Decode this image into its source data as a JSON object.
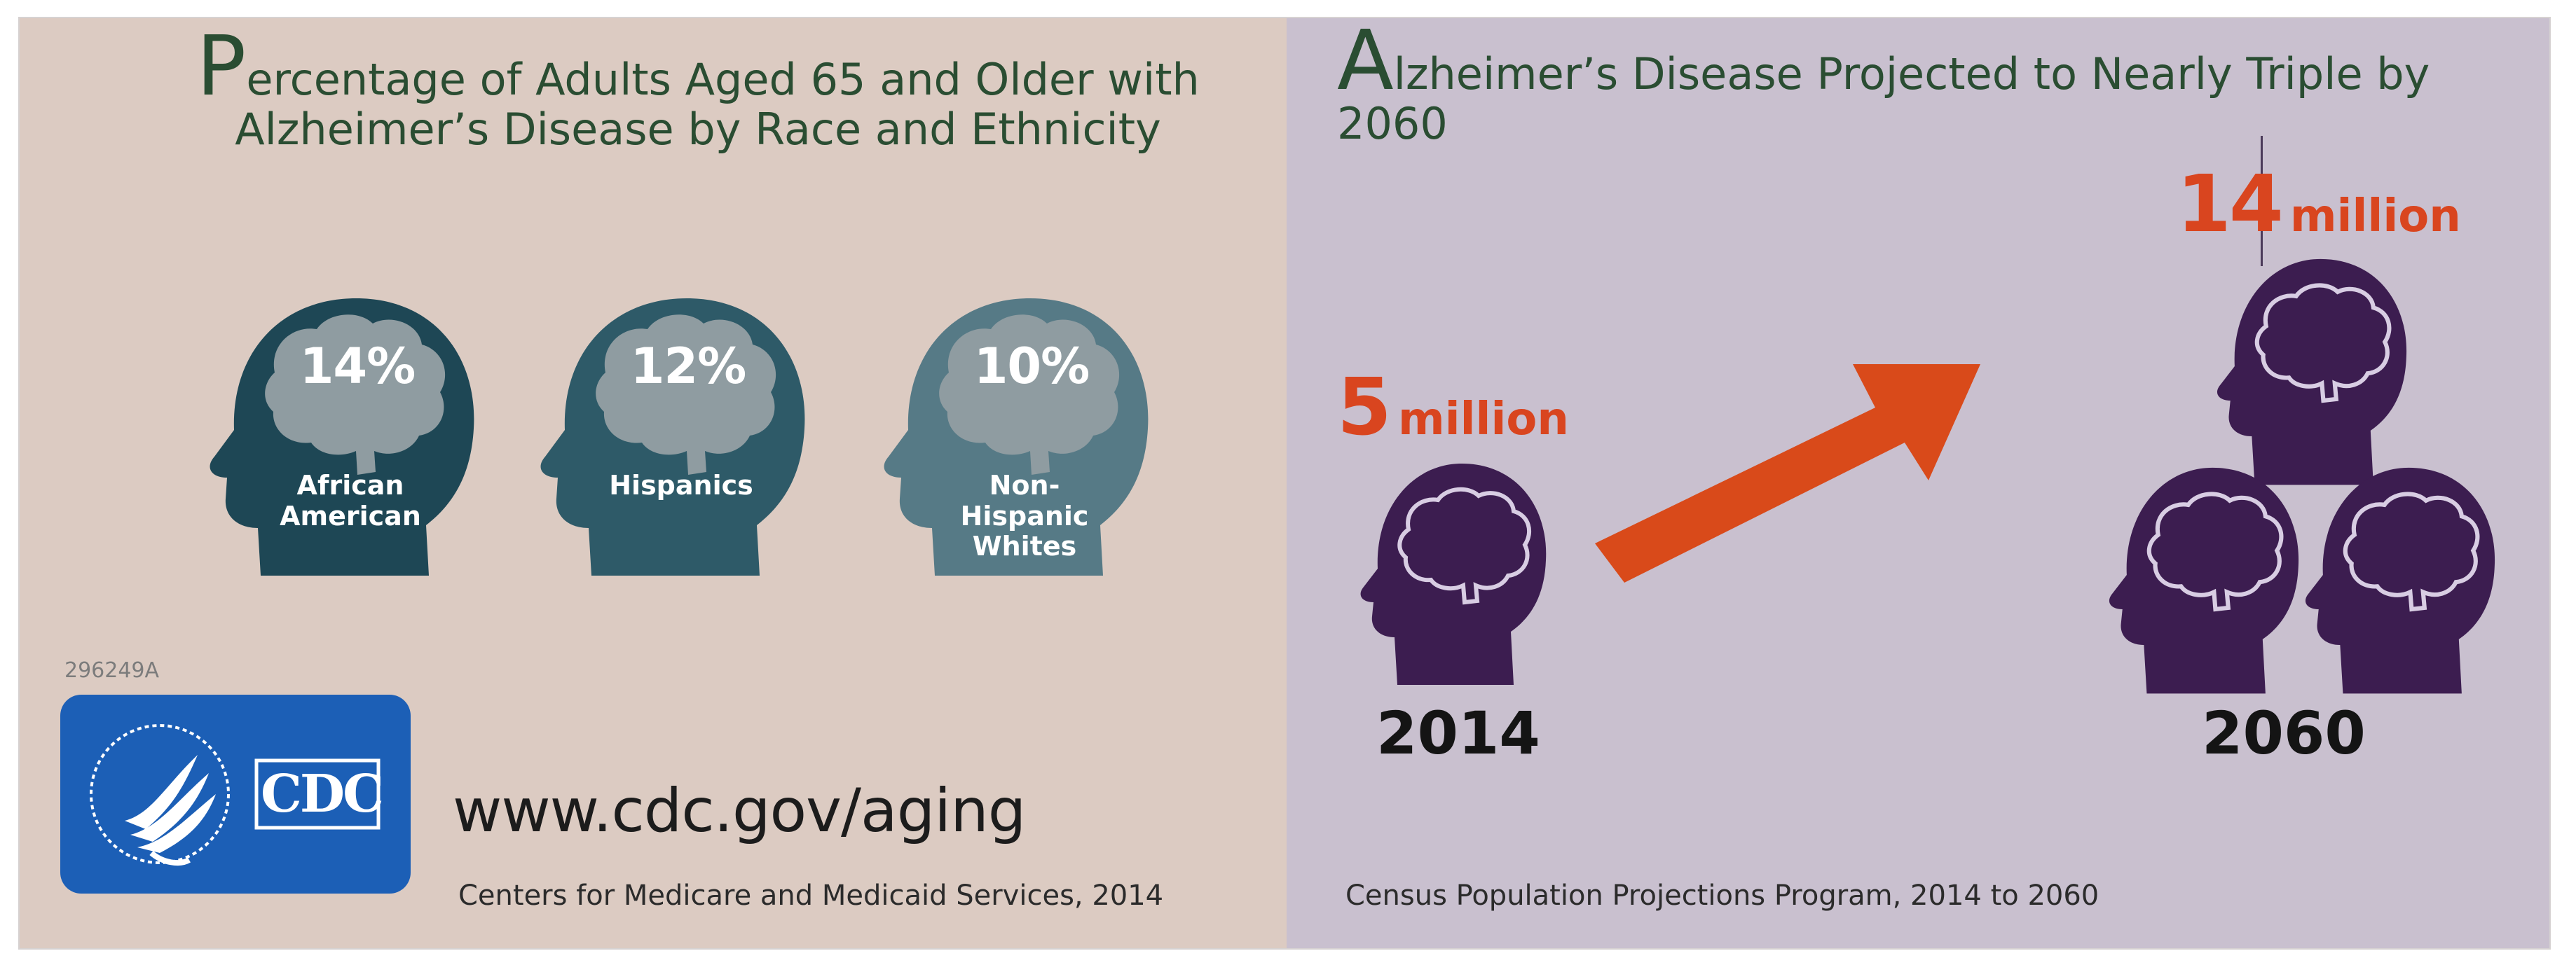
{
  "left_panel": {
    "title_cap": "P",
    "title_rest": "ercentage of Adults Aged 65 and Older with",
    "title_line2": "Alzheimer’s Disease by Race and Ethnicity",
    "groups": [
      {
        "percent": "14%",
        "label": "African American",
        "color": "#1e4755"
      },
      {
        "percent": "12%",
        "label": "Hispanics",
        "color": "#2e5a68"
      },
      {
        "percent": "10%",
        "label": "Non-Hispanic Whites",
        "color": "#567a86"
      }
    ],
    "code": "296249A",
    "logo_text": "CDC",
    "url": "www.cdc.gov/aging",
    "source": "Centers for Medicare and Medicaid Services, 2014"
  },
  "right_panel": {
    "title_cap": "A",
    "title_rest": "lzheimer’s Disease Projected to Nearly Triple by 2060",
    "value_2014_num": "5",
    "value_2014_unit": "million",
    "value_2060_num": "14",
    "value_2060_unit": "million",
    "year_start": "2014",
    "year_end": "2060",
    "source": "Census Population Projections Program, 2014 to 2060",
    "head_color": "#3c1d50",
    "arrow_color": "#d94a1a"
  }
}
